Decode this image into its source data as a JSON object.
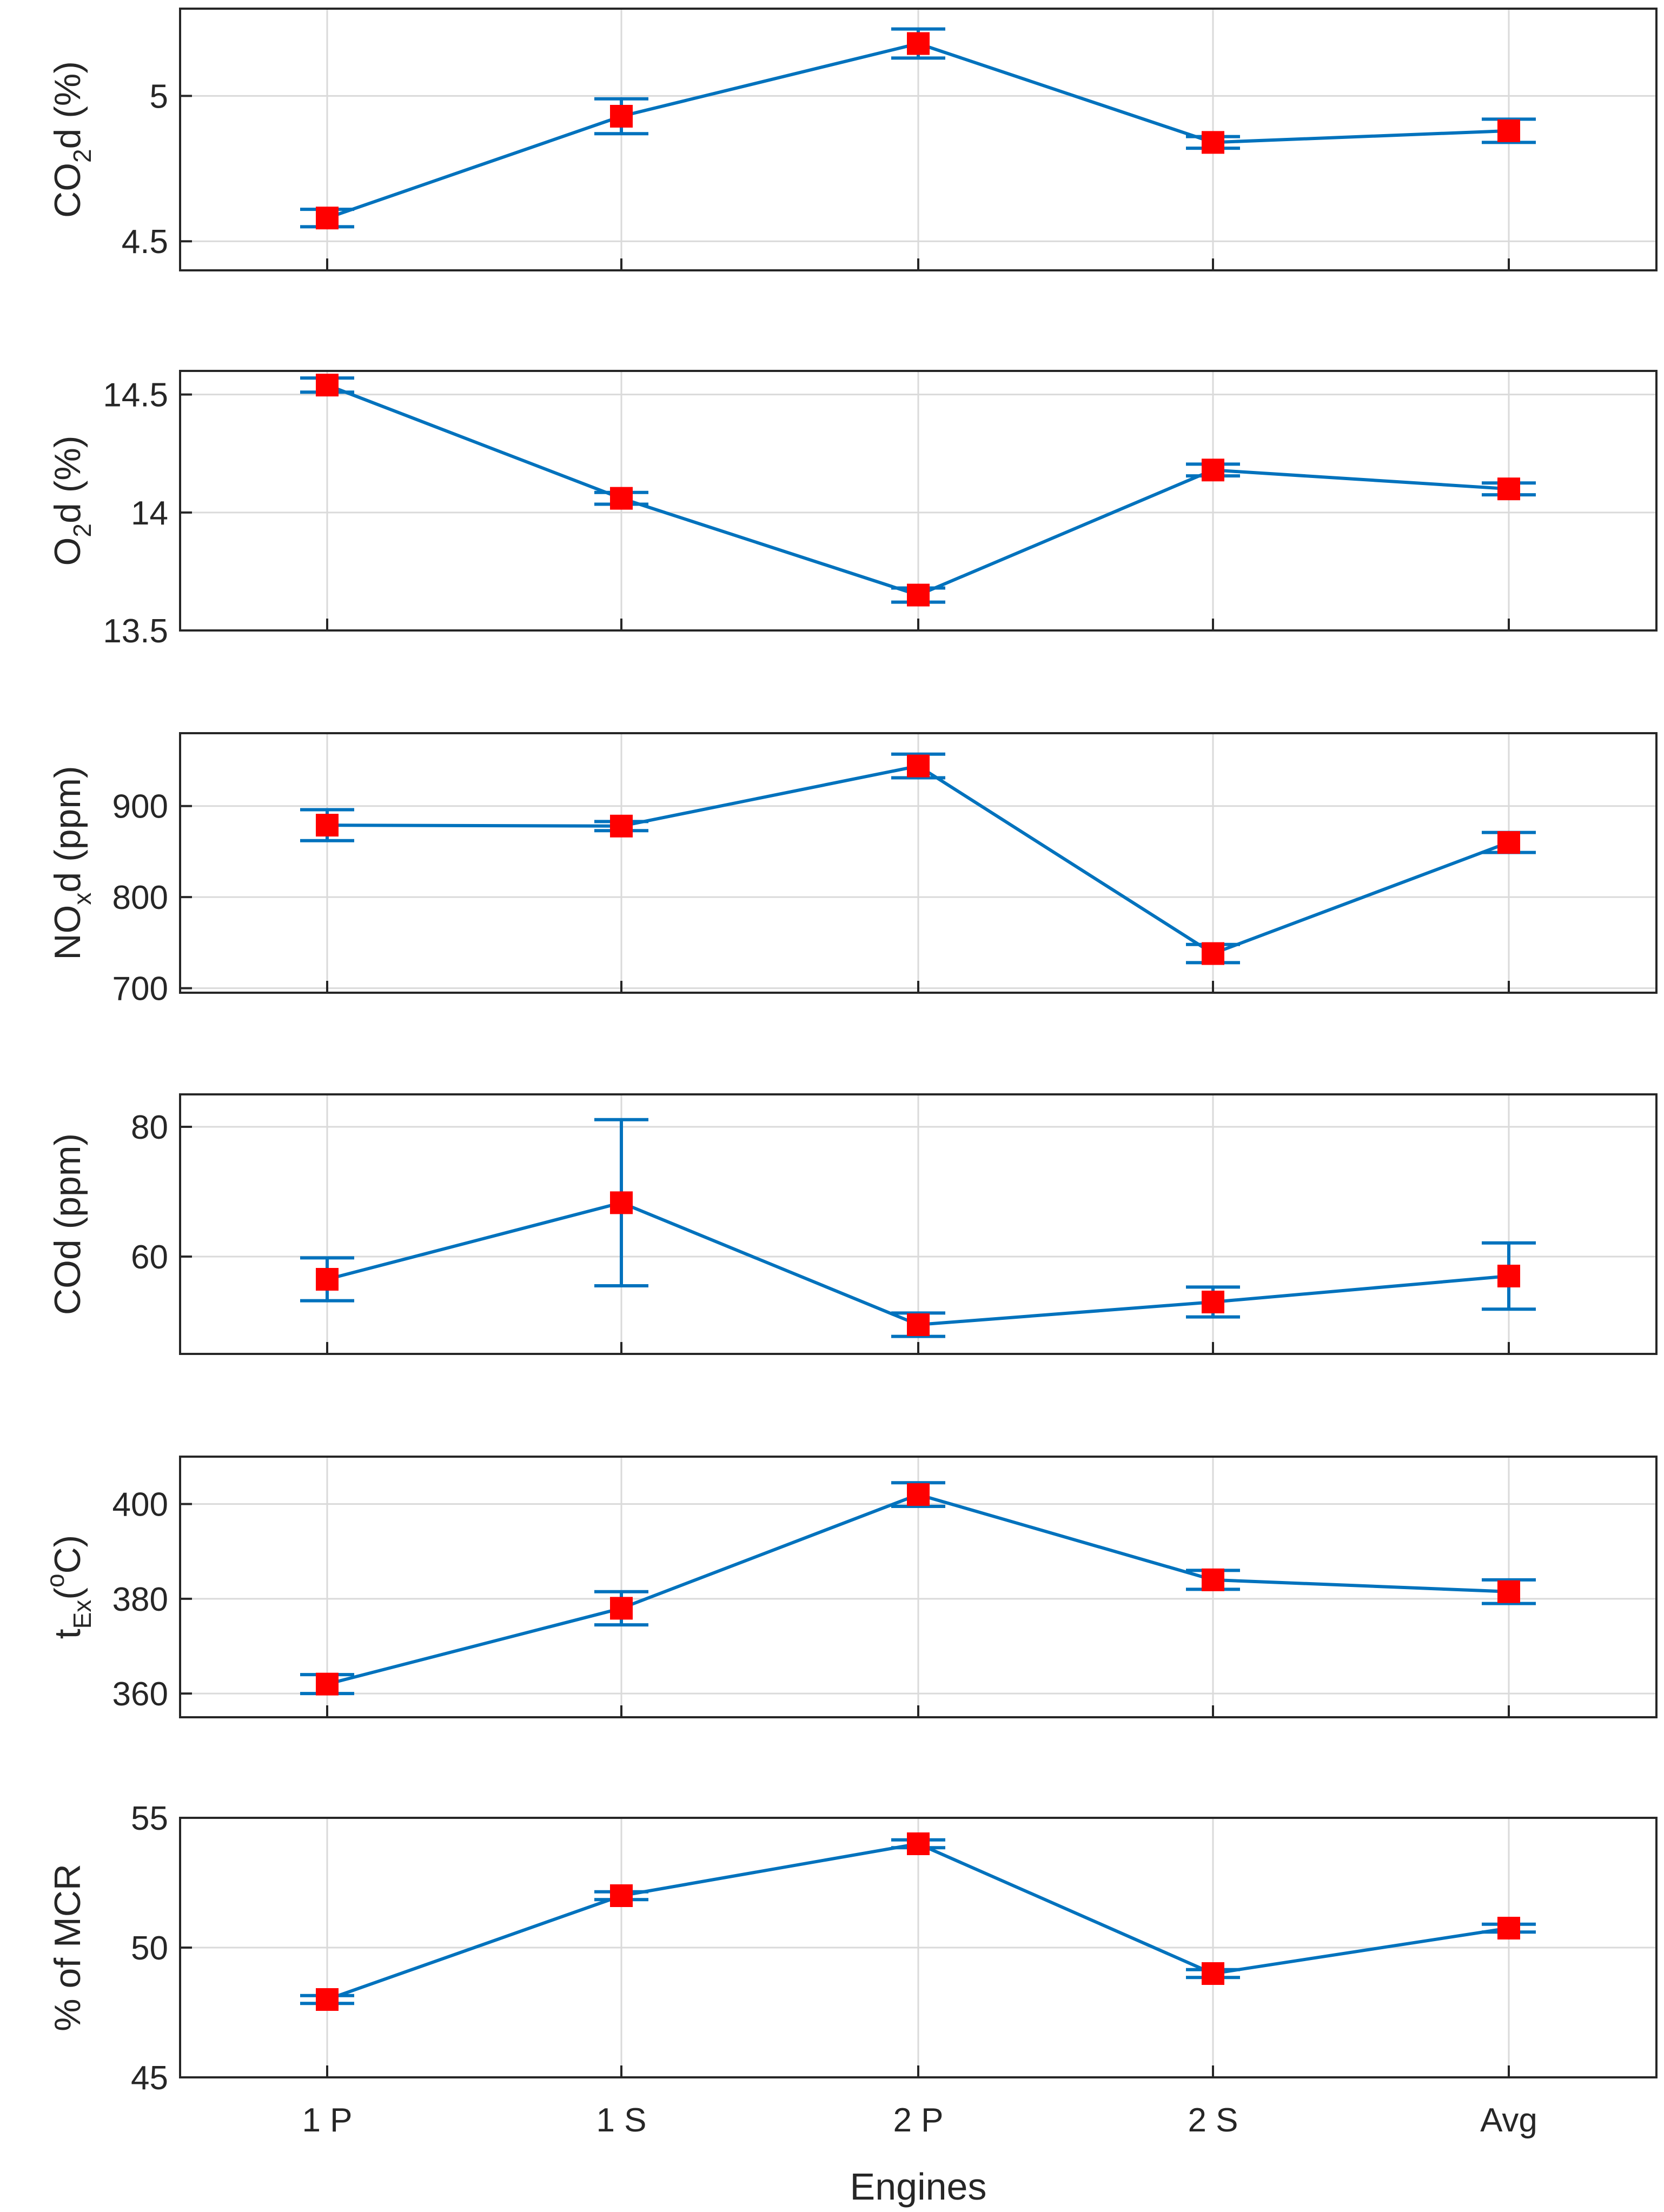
{
  "chart_data": [
    {
      "type": "line",
      "ylabel": {
        "main": "CO",
        "sub": "2",
        "rest": "d (%)"
      },
      "categories": [
        "1 P",
        "1 S",
        "2 P",
        "2 S",
        "Avg"
      ],
      "values": [
        4.58,
        4.93,
        5.18,
        4.84,
        4.88
      ],
      "errors": [
        0.03,
        0.06,
        0.05,
        0.02,
        0.04
      ],
      "ylim": [
        4.4,
        5.3
      ],
      "yticks": [
        4.5,
        5
      ],
      "yticklabels": [
        "4.5",
        "5"
      ]
    },
    {
      "type": "line",
      "ylabel": {
        "main": "O",
        "sub": "2",
        "rest": "d (%)"
      },
      "categories": [
        "1 P",
        "1 S",
        "2 P",
        "2 S",
        "Avg"
      ],
      "values": [
        14.54,
        14.06,
        13.65,
        14.18,
        14.1
      ],
      "errors": [
        0.03,
        0.025,
        0.03,
        0.025,
        0.025
      ],
      "ylim": [
        13.5,
        14.6
      ],
      "yticks": [
        13.5,
        14,
        14.5
      ],
      "yticklabels": [
        "13.5",
        "14",
        "14.5"
      ]
    },
    {
      "type": "line",
      "ylabel": {
        "main": "NO",
        "sub": "x",
        "rest": "d (ppm)"
      },
      "categories": [
        "1 P",
        "1 S",
        "2 P",
        "2 S",
        "Avg"
      ],
      "values": [
        879,
        878,
        944,
        738,
        860
      ],
      "errors": [
        17,
        5,
        13,
        10,
        11
      ],
      "ylim": [
        695,
        980
      ],
      "yticks": [
        700,
        800,
        900
      ],
      "yticklabels": [
        "700",
        "800",
        "900"
      ]
    },
    {
      "type": "line",
      "ylabel": {
        "main": "COd (ppm)",
        "sub": "",
        "rest": ""
      },
      "categories": [
        "1 P",
        "1 S",
        "2 P",
        "2 S",
        "Avg"
      ],
      "values": [
        56.5,
        68.3,
        49.5,
        53.0,
        57.0
      ],
      "errors": [
        3.3,
        12.8,
        1.8,
        2.3,
        5.1
      ],
      "ylim": [
        45,
        85
      ],
      "yticks": [
        60,
        80
      ],
      "yticklabels": [
        "60",
        "80"
      ]
    },
    {
      "type": "line",
      "ylabel": {
        "main": "t",
        "sub": "Ex",
        "rest": "(",
        "sup": "o",
        "rest2": "C)"
      },
      "categories": [
        "1 P",
        "1 S",
        "2 P",
        "2 S",
        "Avg"
      ],
      "values": [
        362,
        378,
        402,
        384,
        381.5
      ],
      "errors": [
        2,
        3.5,
        2.5,
        2,
        2.5
      ],
      "ylim": [
        355,
        410
      ],
      "yticks": [
        360,
        380,
        400
      ],
      "yticklabels": [
        "360",
        "380",
        "400"
      ]
    },
    {
      "type": "line",
      "ylabel": {
        "main": "% of MCR",
        "sub": "",
        "rest": ""
      },
      "categories": [
        "1 P",
        "1 S",
        "2 P",
        "2 S",
        "Avg"
      ],
      "values": [
        48,
        52,
        54,
        49,
        50.75
      ],
      "errors": [
        0.15,
        0.15,
        0.15,
        0.15,
        0.15
      ],
      "ylim": [
        45,
        55
      ],
      "yticks": [
        45,
        50,
        55
      ],
      "yticklabels": [
        "45",
        "50",
        "55"
      ]
    }
  ],
  "xaxis": {
    "label": "Engines",
    "ticklabels": [
      "1 P",
      "1 S",
      "2 P",
      "2 S",
      "Avg"
    ]
  },
  "colors": {
    "line": "#0072BD",
    "marker": "#FF0000",
    "grid": "#DADADA",
    "axis": "#262626"
  }
}
